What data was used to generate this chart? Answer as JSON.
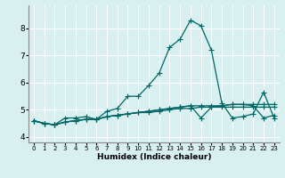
{
  "xlabel": "Humidex (Indice chaleur)",
  "bg_color": "#d8f0f0",
  "grid_color": "#ffffff",
  "line_color": "#006666",
  "xlim": [
    -0.5,
    23.5
  ],
  "ylim": [
    3.8,
    8.85
  ],
  "yticks": [
    4,
    5,
    6,
    7,
    8
  ],
  "xticks": [
    0,
    1,
    2,
    3,
    4,
    5,
    6,
    7,
    8,
    9,
    10,
    11,
    12,
    13,
    14,
    15,
    16,
    17,
    18,
    19,
    20,
    21,
    22,
    23
  ],
  "series": [
    [
      4.6,
      4.5,
      4.45,
      4.7,
      4.7,
      4.75,
      4.65,
      4.95,
      5.05,
      5.5,
      5.5,
      5.9,
      6.35,
      7.3,
      7.6,
      8.3,
      8.1,
      7.2,
      5.25,
      4.7,
      4.75,
      4.85,
      5.65,
      4.7
    ],
    [
      4.6,
      4.5,
      4.45,
      4.55,
      4.6,
      4.65,
      4.65,
      4.75,
      4.8,
      4.85,
      4.9,
      4.9,
      4.95,
      5.0,
      5.05,
      5.05,
      5.1,
      5.1,
      5.1,
      5.1,
      5.1,
      5.1,
      5.1,
      5.1
    ],
    [
      4.6,
      4.5,
      4.45,
      4.55,
      4.6,
      4.65,
      4.65,
      4.75,
      4.8,
      4.85,
      4.9,
      4.95,
      5.0,
      5.05,
      5.1,
      5.15,
      5.15,
      5.15,
      5.15,
      5.2,
      5.2,
      5.2,
      5.2,
      5.2
    ],
    [
      4.6,
      4.5,
      4.45,
      4.55,
      4.6,
      4.65,
      4.65,
      4.75,
      4.8,
      4.85,
      4.9,
      4.95,
      5.0,
      5.05,
      5.1,
      5.15,
      4.7,
      5.1,
      5.15,
      5.2,
      5.2,
      5.15,
      4.7,
      4.8
    ]
  ]
}
